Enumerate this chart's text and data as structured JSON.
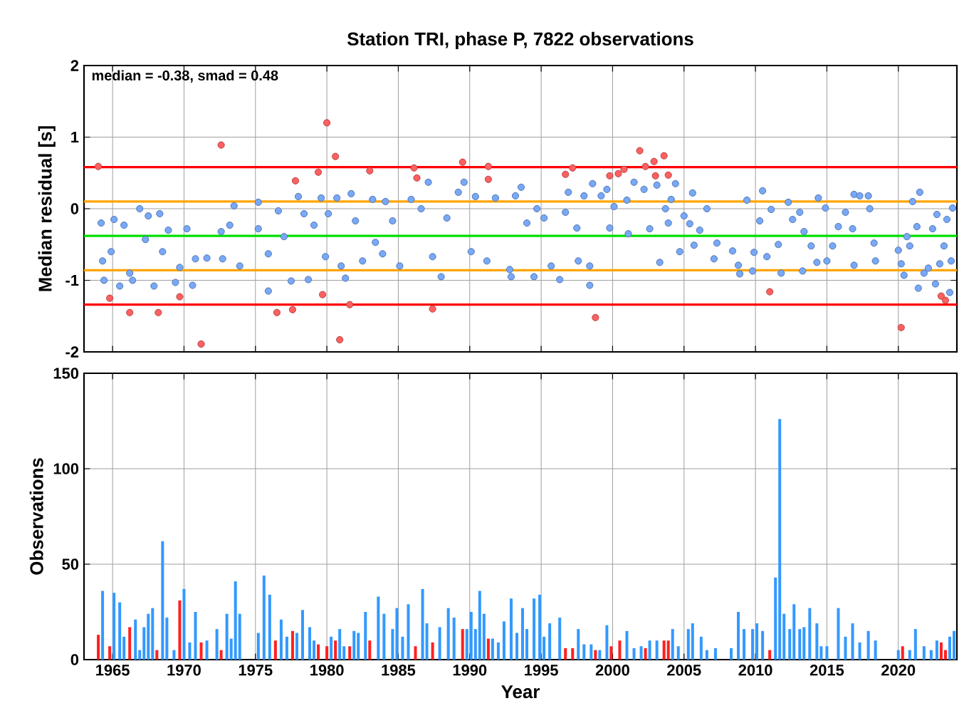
{
  "chart_data": [
    {
      "type": "scatter",
      "title": "Station TRI, phase P, 7822 observations",
      "ylabel": "Median residual [s]",
      "annotations": [
        "median = -0.38, smad = 0.48"
      ],
      "xlim": [
        1963,
        2024.1
      ],
      "xticks": [
        {
          "value": 1965,
          "label": null
        },
        {
          "value": 1970,
          "label": null
        },
        {
          "value": 1975,
          "label": null
        },
        {
          "value": 1980,
          "label": null
        },
        {
          "value": 1985,
          "label": null
        },
        {
          "value": 1990,
          "label": null
        },
        {
          "value": 1995,
          "label": null
        },
        {
          "value": 2000,
          "label": null
        },
        {
          "value": 2005,
          "label": null
        },
        {
          "value": 2010,
          "label": null
        },
        {
          "value": 2015,
          "label": null
        },
        {
          "value": 2020,
          "label": null
        }
      ],
      "ylim": [
        -2,
        2
      ],
      "yticks": [
        -2,
        -1,
        0,
        1,
        2
      ],
      "grid": true,
      "tick_labels": "y",
      "marker": "circle",
      "ref_lines": [
        {
          "axis": "y",
          "value": 0.58,
          "color": "#ff0000"
        },
        {
          "axis": "y",
          "value": 0.1,
          "color": "#ffa500"
        },
        {
          "axis": "y",
          "value": -0.38,
          "color": "#00e000"
        },
        {
          "axis": "y",
          "value": -0.86,
          "color": "#ffa500"
        },
        {
          "axis": "y",
          "value": -1.34,
          "color": "#ff0000"
        }
      ],
      "series": [
        {
          "color": "#78a8f8",
          "x": [
            1964.2,
            1964.3,
            1964.4,
            1964.9,
            1965.1,
            1965.5,
            1965.8,
            1966.2,
            1966.4,
            1966.9,
            1967.3,
            1967.5,
            1967.9,
            1968.3,
            1968.5,
            1968.9,
            1969.4,
            1969.7,
            1970.2,
            1970.6,
            1970.8,
            1971.6,
            1972.6,
            1972.7,
            1973.2,
            1973.5,
            1973.9,
            1975.2,
            1975.2,
            1975.9,
            1975.9,
            1976.6,
            1977.0,
            1977.5,
            1978.0,
            1978.4,
            1978.7,
            1979.1,
            1979.6,
            1979.9,
            1980.1,
            1980.7,
            1981.0,
            1981.3,
            1981.7,
            1982.0,
            1982.5,
            1983.2,
            1983.4,
            1983.9,
            1984.1,
            1984.6,
            1985.1,
            1985.9,
            1986.6,
            1987.1,
            1987.4,
            1988.0,
            1988.4,
            1989.2,
            1989.6,
            1990.1,
            1990.4,
            1991.2,
            1991.8,
            1992.8,
            1992.9,
            1993.2,
            1993.6,
            1994.0,
            1994.5,
            1994.7,
            1995.2,
            1995.7,
            1996.3,
            1996.7,
            1996.9,
            1997.5,
            1997.6,
            1998.0,
            1998.4,
            1998.4,
            1998.6,
            1999.2,
            1999.6,
            1999.8,
            2000.1,
            2001.0,
            2001.1,
            2001.5,
            2002.2,
            2002.6,
            2003.1,
            2003.3,
            2003.7,
            2003.9,
            2004.1,
            2004.4,
            2004.7,
            2005.0,
            2005.4,
            2005.6,
            2005.7,
            2006.1,
            2006.6,
            2007.1,
            2007.3,
            2008.4,
            2008.8,
            2008.9,
            2009.4,
            2009.8,
            2009.9,
            2010.3,
            2010.5,
            2010.8,
            2011.1,
            2011.6,
            2011.8,
            2012.3,
            2012.6,
            2013.1,
            2013.3,
            2013.4,
            2013.9,
            2014.3,
            2014.4,
            2014.9,
            2015.0,
            2015.4,
            2015.8,
            2016.3,
            2016.8,
            2016.9,
            2016.9,
            2017.3,
            2017.9,
            2018.0,
            2018.3,
            2018.4,
            2020.0,
            2020.2,
            2020.4,
            2020.6,
            2020.8,
            2021.0,
            2021.3,
            2021.5,
            2021.4,
            2021.8,
            2022.1,
            2022.4,
            2022.6,
            2022.7,
            2022.9,
            2023.2,
            2023.4,
            2023.6,
            2023.7,
            2023.8
          ],
          "values": [
            -0.2,
            -0.73,
            -1.0,
            -0.6,
            -0.15,
            -1.08,
            -0.23,
            -0.9,
            -1.0,
            0.0,
            -0.43,
            -0.1,
            -1.08,
            -0.07,
            -0.6,
            -0.3,
            -1.03,
            -0.82,
            -0.28,
            -1.07,
            -0.7,
            -0.69,
            -0.32,
            -0.7,
            -0.23,
            0.04,
            -0.8,
            0.09,
            -0.28,
            -1.15,
            -0.63,
            -0.03,
            -0.39,
            -1.01,
            0.17,
            -0.07,
            -0.99,
            -0.23,
            0.15,
            -0.67,
            -0.07,
            0.15,
            -0.8,
            -0.97,
            0.21,
            -0.17,
            -0.73,
            0.13,
            -0.47,
            -0.63,
            0.1,
            -0.17,
            -0.8,
            0.13,
            0.0,
            0.37,
            -0.67,
            -0.95,
            -0.13,
            0.23,
            0.37,
            -0.6,
            0.17,
            -0.73,
            0.15,
            -0.85,
            -0.95,
            0.18,
            0.3,
            -0.2,
            -0.95,
            0.0,
            -0.13,
            -0.8,
            -0.99,
            -0.05,
            0.23,
            -0.27,
            -0.73,
            0.18,
            -0.8,
            -1.07,
            0.35,
            0.18,
            0.27,
            -0.27,
            0.03,
            0.12,
            -0.35,
            0.37,
            0.27,
            -0.28,
            0.33,
            -0.75,
            0.0,
            -0.2,
            0.13,
            0.35,
            -0.6,
            -0.1,
            -0.21,
            0.22,
            -0.51,
            -0.3,
            0.0,
            -0.7,
            -0.48,
            -0.59,
            -0.79,
            -0.91,
            0.12,
            -0.87,
            -0.61,
            -0.17,
            0.25,
            -0.67,
            -0.01,
            -0.5,
            -0.9,
            0.09,
            -0.15,
            -0.05,
            -0.87,
            -0.32,
            -0.52,
            -0.75,
            0.15,
            0.01,
            -0.73,
            -0.52,
            -0.25,
            -0.05,
            -0.28,
            -0.79,
            0.2,
            0.18,
            0.18,
            0.0,
            -0.48,
            -0.73,
            -0.58,
            -0.77,
            -0.93,
            -0.39,
            -0.52,
            0.1,
            -0.25,
            0.23,
            -1.11,
            -0.9,
            -0.83,
            -0.28,
            -1.05,
            -0.08,
            -0.77,
            -0.52,
            -0.15,
            -1.17,
            -0.73,
            0.01
          ]
        },
        {
          "color": "#ff6060",
          "x": [
            1964.0,
            1964.8,
            1966.2,
            1968.2,
            1969.7,
            1971.2,
            1972.6,
            1976.5,
            1977.6,
            1977.7,
            1977.8,
            1979.4,
            1979.7,
            1980.0,
            1980.6,
            1980.9,
            1981.6,
            1983.0,
            1986.1,
            1986.3,
            1987.4,
            1989.5,
            1991.3,
            1991.3,
            1996.7,
            1997.2,
            1998.8,
            1999.8,
            2000.4,
            2000.8,
            2001.9,
            2002.3,
            2002.9,
            2003.0,
            2003.6,
            2003.8,
            2003.9,
            2011.0,
            2020.2,
            2023.0,
            2023.3
          ],
          "values": [
            0.59,
            -1.25,
            -1.45,
            -1.45,
            -1.23,
            -1.89,
            0.89,
            -1.45,
            -1.41,
            null,
            0.39,
            0.51,
            -1.2,
            1.2,
            0.73,
            -1.83,
            -1.34,
            0.53,
            0.57,
            0.43,
            -1.4,
            0.65,
            0.59,
            0.41,
            0.48,
            0.57,
            -1.52,
            0.46,
            0.49,
            0.55,
            0.81,
            0.59,
            0.66,
            0.46,
            0.74,
            null,
            0.47,
            -1.16,
            -1.66,
            -1.22,
            -1.28
          ]
        }
      ]
    },
    {
      "type": "bar",
      "xlabel": "Year",
      "ylabel": "Observations",
      "xlim": [
        1963,
        2024.1
      ],
      "xticks": [
        1965,
        1970,
        1975,
        1980,
        1985,
        1990,
        1995,
        2000,
        2005,
        2010,
        2015,
        2020
      ],
      "ylim": [
        0,
        150
      ],
      "yticks": [
        0,
        50,
        100,
        150
      ],
      "grid": true,
      "series": [
        {
          "color": "#3399ff",
          "x": [
            1964.3,
            1965.1,
            1965.5,
            1965.8,
            1966.6,
            1966.9,
            1967.2,
            1967.5,
            1967.8,
            1968.5,
            1968.8,
            1969.3,
            1970.0,
            1970.4,
            1970.8,
            1971.6,
            1972.3,
            1973.0,
            1973.3,
            1973.6,
            1973.9,
            1975.2,
            1975.6,
            1976.0,
            1976.8,
            1977.2,
            1977.9,
            1978.3,
            1978.8,
            1979.1,
            1980.3,
            1980.9,
            1981.2,
            1981.9,
            1982.2,
            1982.7,
            1983.6,
            1984.0,
            1984.6,
            1984.9,
            1985.3,
            1985.7,
            1986.7,
            1987.0,
            1987.9,
            1988.5,
            1988.9,
            1989.8,
            1990.1,
            1990.4,
            1990.7,
            1991.0,
            1991.6,
            1992.0,
            1992.4,
            1992.9,
            1993.3,
            1993.7,
            1994.0,
            1994.5,
            1994.9,
            1995.2,
            1995.6,
            1996.3,
            1997.6,
            1998.0,
            1998.5,
            1999.1,
            1999.6,
            2001.0,
            2001.5,
            2002.0,
            2002.6,
            2003.1,
            2004.2,
            2004.6,
            2005.3,
            2005.6,
            2006.2,
            2006.6,
            2007.2,
            2008.3,
            2008.8,
            2009.2,
            2009.8,
            2010.1,
            2010.5,
            2011.4,
            2011.7,
            2012.0,
            2012.4,
            2012.7,
            2013.1,
            2013.4,
            2013.8,
            2014.3,
            2014.6,
            2015.0,
            2015.8,
            2016.3,
            2016.8,
            2017.3,
            2017.9,
            2018.4,
            2020.0,
            2020.8,
            2021.2,
            2021.8,
            2022.3,
            2022.7,
            2023.6,
            2023.9
          ],
          "values": [
            36,
            35,
            30,
            12,
            21,
            5,
            17,
            24,
            27,
            62,
            22,
            5,
            37,
            9,
            25,
            10,
            16,
            24,
            11,
            41,
            24,
            14,
            44,
            34,
            21,
            12,
            14,
            26,
            17,
            10,
            12,
            16,
            7,
            15,
            14,
            25,
            33,
            24,
            16,
            27,
            12,
            29,
            37,
            19,
            17,
            27,
            22,
            16,
            25,
            16,
            36,
            24,
            11,
            9,
            20,
            32,
            14,
            27,
            16,
            32,
            34,
            12,
            19,
            22,
            16,
            8,
            8,
            5,
            18,
            15,
            6,
            7,
            10,
            10,
            16,
            7,
            16,
            19,
            12,
            5,
            6,
            6,
            25,
            16,
            16,
            19,
            15,
            43,
            126,
            24,
            16,
            29,
            16,
            17,
            27,
            19,
            7,
            7,
            27,
            12,
            19,
            9,
            15,
            10,
            5,
            5,
            16,
            7,
            5,
            10,
            12,
            15
          ]
        },
        {
          "color": "#ff2020",
          "x": [
            1964.0,
            1964.8,
            1966.2,
            1968.1,
            1969.7,
            1971.2,
            1972.6,
            1976.4,
            1977.6,
            1979.4,
            1980.0,
            1980.6,
            1981.6,
            1983.0,
            1986.2,
            1987.4,
            1989.5,
            1991.3,
            1996.7,
            1997.2,
            1998.8,
            1999.9,
            2000.5,
            2002.3,
            2003.6,
            2003.9,
            2011.0,
            2020.3,
            2023.0,
            2023.3
          ],
          "values": [
            13,
            7,
            17,
            5,
            31,
            9,
            5,
            10,
            15,
            8,
            7,
            10,
            7,
            10,
            7,
            9,
            16,
            11,
            6,
            6,
            5,
            7,
            10,
            6,
            10,
            10,
            5,
            7,
            9,
            5
          ]
        }
      ]
    }
  ]
}
